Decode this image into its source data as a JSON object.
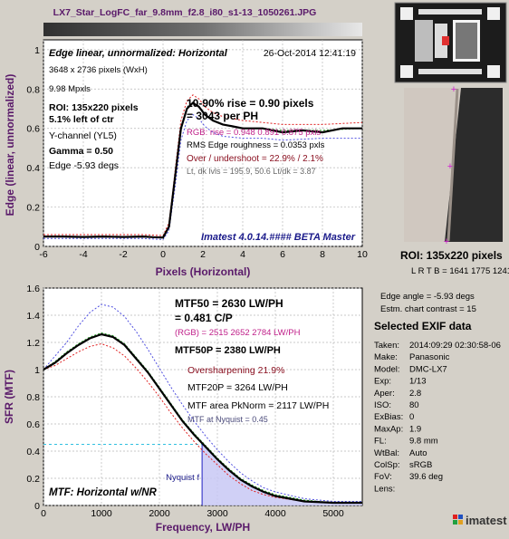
{
  "file_title": "LX7_Star_LogFC_far_9.8mm_f2.8_i80_s1-13_1050261.JPG",
  "colors": {
    "background": "#d4d0c8",
    "black_curve": "#000000",
    "red_curve": "#e02020",
    "green_curve": "#1a9a1a",
    "blue_curve": "#5050e0",
    "purple_text": "#5a1a6a",
    "magenta_text": "#c0208a",
    "navy_text": "#1a1a8a"
  },
  "chart_data": [
    {
      "type": "line",
      "title": "Edge linear, unnormalized: Horizontal",
      "date": "26-Oct-2014 12:41:19",
      "xlabel": "Pixels (Horizontal)",
      "ylabel": "Edge (linear, unnormalized)",
      "xlim": [
        -6,
        10
      ],
      "ylim": [
        0,
        1.05
      ],
      "xticks": [
        "-6",
        "-4",
        "-2",
        "0",
        "2",
        "4",
        "6",
        "8",
        "10"
      ],
      "yticks": [
        "0",
        "0.2",
        "0.4",
        "0.6",
        "0.8",
        "1"
      ],
      "grid": true,
      "watermark": "Imatest 4.0.14.#### BETA Master",
      "info_left": [
        "3648 x 2736 pixels (WxH)",
        "9.98 Mpxls",
        "ROI:  135x220 pixels",
        "5.1% left of ctr",
        "Y-channel  (YL5)",
        "Gamma = 0.50",
        "Edge -5.93 degs"
      ],
      "info_right": [
        "10-90% rise = 0.90 pixels",
        "= 3043 per PH",
        "RGB: rise = 0.948  0.891  0.875 pxls",
        "RMS Edge roughness = 0.0353 pxls",
        "Over / undershoot = 22.9% / 2.1%",
        "Lt, dk lvls = 195.9, 50.6   Lt/dk = 3.87"
      ],
      "series": [
        {
          "name": "Y",
          "color": "#000000",
          "x": [
            -6,
            -5,
            -4,
            -3,
            -2,
            -1,
            -0.5,
            0,
            0.3,
            0.6,
            0.9,
            1.2,
            1.5,
            1.8,
            2.1,
            2.5,
            3,
            3.5,
            4,
            5,
            6,
            7,
            8,
            9,
            10
          ],
          "y": [
            0.05,
            0.05,
            0.048,
            0.05,
            0.048,
            0.05,
            0.047,
            0.045,
            0.1,
            0.35,
            0.6,
            0.7,
            0.73,
            0.71,
            0.67,
            0.64,
            0.62,
            0.61,
            0.6,
            0.6,
            0.58,
            0.59,
            0.58,
            0.6,
            0.6
          ]
        },
        {
          "name": "R",
          "color": "#e02020",
          "x": [
            -6,
            -4,
            -2,
            -1,
            0,
            0.3,
            0.6,
            0.9,
            1.2,
            1.5,
            1.8,
            2.1,
            2.5,
            3,
            4,
            5,
            6,
            8,
            10
          ],
          "y": [
            0.06,
            0.06,
            0.06,
            0.06,
            0.055,
            0.12,
            0.38,
            0.64,
            0.74,
            0.77,
            0.75,
            0.71,
            0.68,
            0.66,
            0.64,
            0.63,
            0.62,
            0.62,
            0.63
          ]
        },
        {
          "name": "G",
          "color": "#1a9a1a",
          "x": [
            -6,
            -4,
            -2,
            -1,
            0,
            0.3,
            0.6,
            0.9,
            1.2,
            1.5,
            1.8,
            2.1,
            2.5,
            3,
            4,
            5,
            6,
            8,
            10
          ],
          "y": [
            0.05,
            0.05,
            0.048,
            0.05,
            0.045,
            0.1,
            0.35,
            0.6,
            0.7,
            0.73,
            0.71,
            0.67,
            0.64,
            0.62,
            0.6,
            0.6,
            0.59,
            0.59,
            0.6
          ]
        },
        {
          "name": "B",
          "color": "#5050e0",
          "x": [
            -6,
            -4,
            -2,
            -1,
            0,
            0.3,
            0.6,
            0.9,
            1.2,
            1.5,
            1.8,
            2.1,
            2.5,
            3,
            4,
            5,
            6,
            8,
            10
          ],
          "y": [
            0.04,
            0.04,
            0.04,
            0.04,
            0.035,
            0.08,
            0.3,
            0.54,
            0.64,
            0.67,
            0.65,
            0.61,
            0.58,
            0.56,
            0.55,
            0.55,
            0.54,
            0.55,
            0.55
          ]
        }
      ]
    },
    {
      "type": "line",
      "title": "MTF: Horizontal w/NR",
      "xlabel": "Frequency, LW/PH",
      "ylabel": "SFR (MTF)",
      "xlim": [
        0,
        5500
      ],
      "ylim": [
        0,
        1.6
      ],
      "xticks": [
        "0",
        "1000",
        "2000",
        "3000",
        "4000",
        "5000"
      ],
      "yticks": [
        "0",
        "0.2",
        "0.4",
        "0.6",
        "0.8",
        "1",
        "1.2",
        "1.4",
        "1.6"
      ],
      "grid": true,
      "nyquist_label": "Nyquist f",
      "nyquist_x": 2736,
      "nyquist_y": 0.45,
      "info": [
        "MTF50 = 2630 LW/PH",
        "= 0.481 C/P",
        "(RGB) = 2515  2652  2784 LW/PH",
        "MTF50P = 2380 LW/PH",
        "Oversharpening 21.9%",
        "MTF20P = 3264 LW/PH",
        "MTF area PkNorm = 2117 LW/PH",
        "MTF at Nyquist = 0.45"
      ],
      "series": [
        {
          "name": "Y",
          "color": "#000000",
          "x": [
            0,
            200,
            400,
            600,
            800,
            1000,
            1200,
            1400,
            1600,
            1800,
            2000,
            2200,
            2400,
            2600,
            2800,
            3000,
            3200,
            3400,
            3600,
            3800,
            4000,
            4500,
            5000,
            5500
          ],
          "y": [
            1.0,
            1.05,
            1.12,
            1.18,
            1.23,
            1.26,
            1.24,
            1.18,
            1.08,
            0.98,
            0.86,
            0.74,
            0.62,
            0.52,
            0.43,
            0.34,
            0.26,
            0.19,
            0.14,
            0.1,
            0.07,
            0.03,
            0.02,
            0.02
          ]
        },
        {
          "name": "R",
          "color": "#e02020",
          "x": [
            0,
            200,
            400,
            600,
            800,
            1000,
            1200,
            1400,
            1600,
            1800,
            2000,
            2200,
            2400,
            2600,
            2800,
            3000,
            3200,
            3400,
            3600,
            3800,
            4000,
            4500,
            5000,
            5500
          ],
          "y": [
            1.0,
            1.03,
            1.08,
            1.13,
            1.17,
            1.19,
            1.16,
            1.1,
            1.01,
            0.91,
            0.8,
            0.68,
            0.57,
            0.47,
            0.38,
            0.3,
            0.22,
            0.16,
            0.11,
            0.08,
            0.06,
            0.03,
            0.02,
            0.02
          ]
        },
        {
          "name": "G",
          "color": "#1a9a1a",
          "x": [
            0,
            200,
            400,
            600,
            800,
            1000,
            1200,
            1400,
            1600,
            1800,
            2000,
            2200,
            2400,
            2600,
            2800,
            3000,
            3200,
            3400,
            3600,
            3800,
            4000,
            4500,
            5000,
            5500
          ],
          "y": [
            1.0,
            1.06,
            1.13,
            1.19,
            1.24,
            1.27,
            1.25,
            1.19,
            1.09,
            0.99,
            0.87,
            0.75,
            0.63,
            0.53,
            0.44,
            0.35,
            0.27,
            0.2,
            0.15,
            0.11,
            0.08,
            0.04,
            0.02,
            0.02
          ]
        },
        {
          "name": "B",
          "color": "#5050e0",
          "x": [
            0,
            200,
            400,
            600,
            800,
            1000,
            1200,
            1400,
            1600,
            1800,
            2000,
            2200,
            2400,
            2600,
            2800,
            3000,
            3200,
            3400,
            3600,
            3800,
            4000,
            4500,
            5000,
            5500
          ],
          "y": [
            1.0,
            1.1,
            1.2,
            1.32,
            1.42,
            1.48,
            1.46,
            1.39,
            1.28,
            1.15,
            1.01,
            0.87,
            0.74,
            0.62,
            0.51,
            0.41,
            0.32,
            0.24,
            0.18,
            0.13,
            0.1,
            0.05,
            0.03,
            0.03
          ]
        }
      ]
    }
  ],
  "roi_caption": "ROI:  135x220 pixels",
  "roi_coords": "L R T B = 1641 1775 1241",
  "edge_angle": "Edge angle = -5.93 degs",
  "chart_contrast": "Estm. chart contrast = 15",
  "exif": {
    "header": "Selected EXIF data",
    "rows": [
      {
        "k": "Taken:",
        "v": "2014:09:29 02:30:58-06"
      },
      {
        "k": "Make:",
        "v": "Panasonic"
      },
      {
        "k": "Model:",
        "v": "DMC-LX7"
      },
      {
        "k": "Exp:",
        "v": "1/13"
      },
      {
        "k": "Aper:",
        "v": "2.8"
      },
      {
        "k": "ISO:",
        "v": "80"
      },
      {
        "k": "ExBias:",
        "v": "0"
      },
      {
        "k": "MaxAp:",
        "v": "1.9"
      },
      {
        "k": "FL:",
        "v": "9.8 mm"
      },
      {
        "k": "WtBal:",
        "v": "Auto"
      },
      {
        "k": "ColSp:",
        "v": "sRGB"
      },
      {
        "k": "FoV:",
        "v": "39.6 deg"
      },
      {
        "k": "Lens:",
        "v": ""
      }
    ]
  },
  "logo_text": "imatest"
}
